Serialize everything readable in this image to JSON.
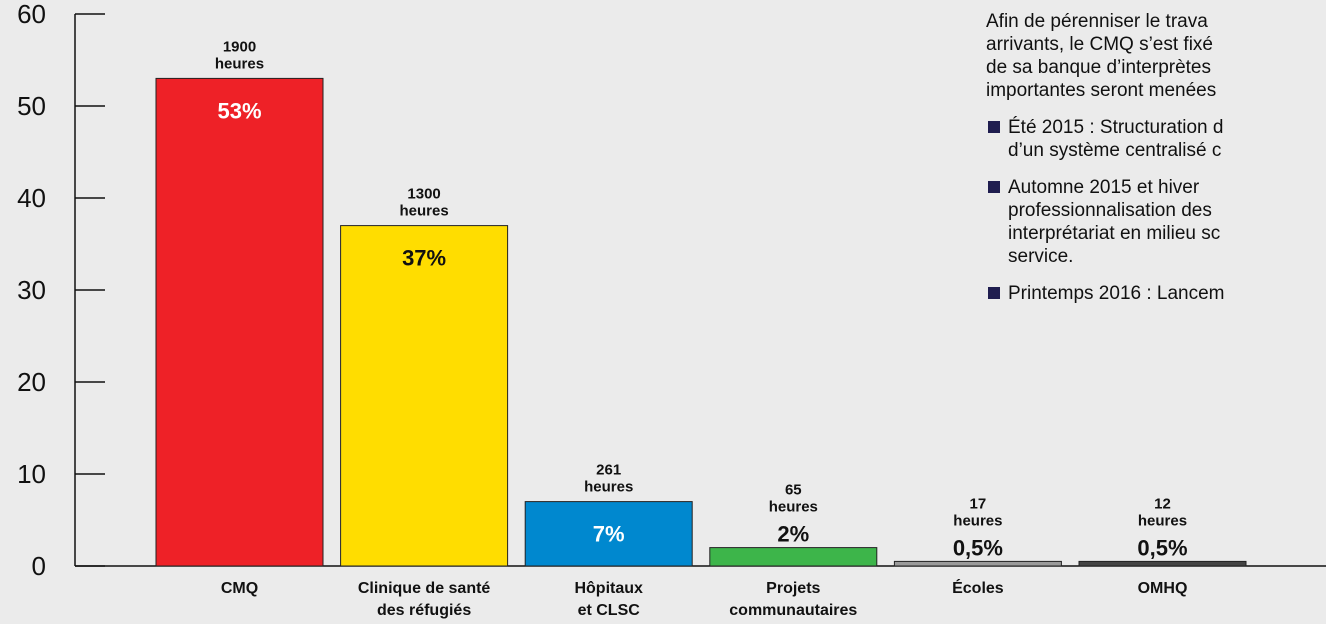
{
  "chart_data": {
    "type": "bar",
    "categories": [
      [
        "CMQ"
      ],
      [
        "Clinique de santé",
        "des réfugiés"
      ],
      [
        "Hôpitaux",
        "et CLSC"
      ],
      [
        "Projets",
        "communautaires"
      ],
      [
        "Écoles"
      ],
      [
        "OMHQ"
      ]
    ],
    "values": [
      53,
      37,
      7,
      2,
      0.5,
      0.5
    ],
    "hours": [
      [
        "1900",
        "heures"
      ],
      [
        "1300",
        "heures"
      ],
      [
        "261",
        "heures"
      ],
      [
        "65",
        "heures"
      ],
      [
        "17",
        "heures"
      ],
      [
        "12",
        "heures"
      ]
    ],
    "pct_labels": [
      "53%",
      "37%",
      "7%",
      "2%",
      "0,5%",
      "0,5%"
    ],
    "colors": [
      "#ee2127",
      "#ffdd00",
      "#0088cf",
      "#3db54a",
      "#9a9a9a",
      "#444444"
    ],
    "pct_label_colors": [
      "#ffffff",
      "#111111",
      "#ffffff",
      "#111111",
      "#111111",
      "#111111"
    ],
    "ylim": [
      0,
      60
    ],
    "yticks": [
      0,
      10,
      20,
      30,
      40,
      50,
      60
    ],
    "title": "",
    "xlabel": "",
    "ylabel": ""
  },
  "side_text": {
    "intro": [
      "Afin de pérenniser le trava",
      "arrivants, le CMQ s’est fixé",
      "de sa banque d’interprètes",
      "importantes seront menées"
    ],
    "bullets": [
      [
        "Été 2015 : Structuration d",
        "d’un système centralisé c"
      ],
      [
        "Automne 2015 et hiver",
        "professionnalisation des",
        "interprétariat en milieu sc",
        "service."
      ],
      [
        "Printemps 2016 : Lancem"
      ]
    ]
  }
}
